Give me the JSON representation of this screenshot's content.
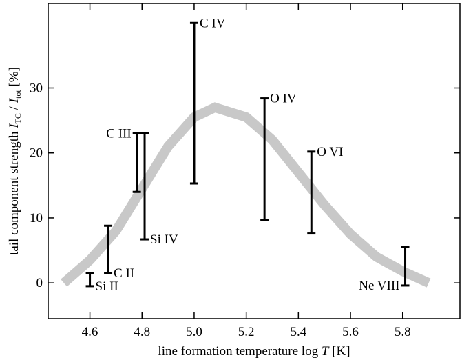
{
  "chart_data": {
    "type": "errorbar",
    "xlabel": [
      "line formation temperature  log ",
      "T",
      " [K]"
    ],
    "ylabel": [
      "tail component strength  ",
      "I",
      "TC",
      " / ",
      "I",
      "tot",
      "  [%]"
    ],
    "xlim": [
      4.44,
      6.02
    ],
    "xticks": [
      4.6,
      4.8,
      {
        "value": 5.0,
        "label": "5.0"
      },
      5.2,
      5.4,
      5.6,
      5.8
    ],
    "ylim": [
      -5.5,
      43
    ],
    "yticks": [
      0,
      10,
      20,
      30
    ],
    "curve": {
      "color": "#c8c8c8",
      "x": [
        4.5,
        4.6,
        4.7,
        4.8,
        4.9,
        5.0,
        5.08,
        5.2,
        5.3,
        5.4,
        5.5,
        5.6,
        5.7,
        5.8,
        5.9
      ],
      "y": [
        0,
        3.5,
        8,
        14.5,
        21,
        25.5,
        27,
        25.5,
        22,
        17,
        12,
        7.5,
        4,
        1.8,
        0
      ]
    },
    "bars": {
      "color": "#000000",
      "names": [
        "Si II",
        "C II",
        "C III",
        "Si IV",
        "C IV",
        "O IV",
        "O VI",
        "Ne VIII"
      ],
      "x": [
        4.6,
        4.67,
        4.78,
        4.81,
        5.0,
        5.27,
        5.45,
        5.81
      ],
      "low": [
        -0.5,
        1.5,
        14,
        6.7,
        15.3,
        9.7,
        7.6,
        -0.4
      ],
      "high": [
        1.5,
        8.8,
        23,
        23,
        40,
        28.4,
        20.2,
        5.5
      ]
    }
  }
}
